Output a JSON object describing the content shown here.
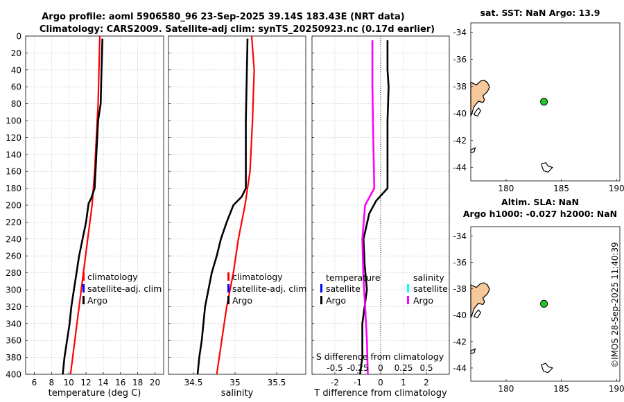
{
  "title": {
    "line1": "Argo profile: aoml 5906580_96 23-Sep-2025 39.14S 183.43E (NRT data)",
    "line2": "Climatology: CARS2009. Satellite-adj clim: synTS_20250923.nc (0.17d earlier)"
  },
  "stamp": "©IMOS 28-Sep-2025 11:40:39",
  "colors": {
    "red": "#ff0000",
    "black": "#000000",
    "blue": "#0000ff",
    "cyan": "#00ffff",
    "magenta": "#ff00ff",
    "land": "#f6c99b",
    "float": "#22cc22",
    "grid": "#b8b8b8"
  },
  "chart_data": [
    {
      "type": "line",
      "name": "temperature-profile",
      "xlabel": "temperature (deg C)",
      "xlim": [
        5,
        21
      ],
      "ylim": [
        0,
        400
      ],
      "yticks": [
        0,
        20,
        40,
        60,
        80,
        100,
        120,
        140,
        160,
        180,
        200,
        220,
        240,
        260,
        280,
        300,
        320,
        340,
        360,
        380,
        400
      ],
      "xticks": [
        6,
        8,
        10,
        12,
        14,
        16,
        18,
        20
      ],
      "grid": true,
      "legend": {
        "position": "lower-middle",
        "items": [
          "climatology",
          "satellite-adj. clim",
          "Argo"
        ]
      },
      "series": [
        {
          "name": "climatology",
          "color": "red",
          "depth": [
            0,
            40,
            80,
            120,
            160,
            200,
            240,
            280,
            320,
            360,
            400
          ],
          "values": [
            13.6,
            13.5,
            13.4,
            13.2,
            13.0,
            12.7,
            12.2,
            11.7,
            11.2,
            10.7,
            10.2
          ]
        },
        {
          "name": "Argo",
          "color": "black",
          "depth": [
            3,
            40,
            80,
            100,
            140,
            180,
            192,
            198,
            220,
            240,
            260,
            280,
            300,
            320,
            340,
            360,
            380,
            400
          ],
          "values": [
            13.9,
            13.8,
            13.7,
            13.4,
            13.2,
            13.0,
            12.6,
            12.3,
            12.0,
            11.6,
            11.2,
            10.9,
            10.6,
            10.3,
            10.1,
            9.8,
            9.5,
            9.3
          ]
        }
      ]
    },
    {
      "type": "line",
      "name": "salinity-profile",
      "xlabel": "salinity",
      "xlim": [
        34.2,
        35.85
      ],
      "ylim": [
        0,
        400
      ],
      "xticks": [
        34.5,
        35,
        35.5
      ],
      "grid": true,
      "legend": {
        "position": "lower-middle",
        "items": [
          "climatology",
          "satellite-adj. clim",
          "Argo"
        ]
      },
      "series": [
        {
          "name": "climatology",
          "color": "red",
          "depth": [
            0,
            40,
            100,
            160,
            200,
            240,
            280,
            320,
            360,
            400
          ],
          "values": [
            35.2,
            35.23,
            35.21,
            35.18,
            35.12,
            35.04,
            34.98,
            34.9,
            34.84,
            34.78
          ]
        },
        {
          "name": "Argo",
          "color": "black",
          "depth": [
            3,
            100,
            180,
            190,
            200,
            220,
            240,
            260,
            280,
            300,
            320,
            340,
            360,
            380,
            400
          ],
          "values": [
            35.15,
            35.13,
            35.13,
            35.08,
            34.98,
            34.9,
            34.83,
            34.78,
            34.72,
            34.68,
            34.64,
            34.62,
            34.6,
            34.57,
            34.55
          ]
        }
      ]
    },
    {
      "type": "line",
      "name": "difference-profile",
      "xlabel": "T difference from climatology",
      "xlabel_top": "S difference from climatology",
      "xlim": [
        -3,
        3
      ],
      "xlim_S": [
        -0.75,
        0.75
      ],
      "ylim": [
        0,
        400
      ],
      "xticks": [
        -2,
        -1,
        0,
        1,
        2
      ],
      "xticks_S": [
        "-0.5",
        "-0.25",
        "0",
        "0.25",
        "0.5"
      ],
      "grid": true,
      "legend_temperature": {
        "title": "temperature",
        "items": [
          "satellite",
          "Argo"
        ]
      },
      "legend_salinity": {
        "title": "salinity",
        "items": [
          "satellite",
          "Argo"
        ]
      },
      "series": [
        {
          "name": "T Argo",
          "color": "black",
          "depth": [
            5,
            40,
            60,
            100,
            180,
            195,
            210,
            240,
            270,
            300,
            340,
            380,
            400
          ],
          "values": [
            0.3,
            0.3,
            0.35,
            0.3,
            0.3,
            -0.2,
            -0.5,
            -0.75,
            -0.7,
            -0.6,
            -0.8,
            -0.8,
            -0.9
          ]
        },
        {
          "name": "S Argo",
          "color": "magenta",
          "depth": [
            5,
            60,
            120,
            180,
            200,
            240,
            280,
            320,
            360,
            400
          ],
          "values": [
            -0.09,
            -0.09,
            -0.08,
            -0.07,
            -0.17,
            -0.2,
            -0.19,
            -0.17,
            -0.15,
            -0.14
          ]
        }
      ]
    },
    {
      "type": "scatter",
      "name": "sst-map",
      "title": "sat. SST: NaN Argo: 13.9",
      "xlim": [
        176.8,
        190.3
      ],
      "ylim": [
        -45,
        -33.3
      ],
      "xticks": [
        180,
        185,
        190
      ],
      "yticks": [
        -34,
        -36,
        -38,
        -40,
        -42,
        -44
      ],
      "x": [
        183.43
      ],
      "y": [
        -39.14
      ]
    },
    {
      "type": "scatter",
      "name": "sla-map",
      "title": "Altim. SLA: NaN",
      "subtitle": "Argo h1000: -0.027 h2000: NaN",
      "xlim": [
        176.8,
        190.3
      ],
      "ylim": [
        -45,
        -33.3
      ],
      "xticks": [
        180,
        185,
        190
      ],
      "yticks": [
        -34,
        -36,
        -38,
        -40,
        -42,
        -44
      ],
      "x": [
        183.43
      ],
      "y": [
        -39.14
      ]
    }
  ]
}
